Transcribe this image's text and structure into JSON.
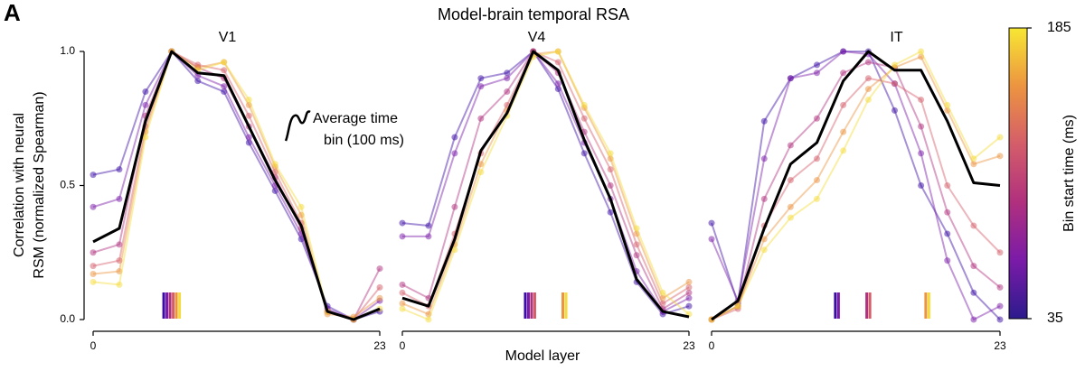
{
  "panel_label": "A",
  "title": "Model-brain temporal RSA",
  "xlabel": "Model layer",
  "ylabel": [
    "Correlation with neural",
    "RSM (normalized Spearman)"
  ],
  "annotation": [
    "Average time",
    "bin (100 ms)"
  ],
  "colorbar": {
    "label": "Bin start time (ms)",
    "lim": [
      35,
      185
    ],
    "ticks": [
      35,
      185
    ],
    "colors": [
      "#2c1b8c",
      "#7a1ba8",
      "#b0307e",
      "#d45d6a",
      "#ec9440",
      "#f7e733"
    ]
  },
  "chart_data": [
    {
      "type": "line",
      "title": "V1",
      "x": [
        0,
        2.1,
        4.2,
        6.3,
        8.4,
        10.5,
        12.5,
        14.6,
        16.7,
        18.8,
        20.9,
        23
      ],
      "xlim": [
        0,
        23
      ],
      "xticks": [
        0,
        23
      ],
      "ylim": [
        0,
        1
      ],
      "yticks": [
        {
          "value": 0,
          "label": "0.0"
        },
        {
          "value": 0.5,
          "label": "0.5"
        },
        {
          "value": 1,
          "label": "1.0"
        }
      ],
      "series": [
        {
          "color": "#3a0ca3",
          "values": [
            0.54,
            0.56,
            0.85,
            1.0,
            0.89,
            0.85,
            0.66,
            0.48,
            0.3,
            0.05,
            0.0,
            0.03
          ]
        },
        {
          "color": "#7a1ba8",
          "values": [
            0.42,
            0.45,
            0.8,
            1.0,
            0.91,
            0.87,
            0.68,
            0.5,
            0.32,
            0.04,
            0.0,
            0.07
          ]
        },
        {
          "color": "#b0307e",
          "values": [
            0.25,
            0.28,
            0.76,
            1.0,
            0.94,
            0.9,
            0.72,
            0.53,
            0.34,
            0.03,
            0.0,
            0.19
          ]
        },
        {
          "color": "#d45d6a",
          "values": [
            0.2,
            0.22,
            0.72,
            1.0,
            0.95,
            0.93,
            0.76,
            0.55,
            0.36,
            0.03,
            0.0,
            0.12
          ]
        },
        {
          "color": "#ec9440",
          "values": [
            0.17,
            0.18,
            0.7,
            1.0,
            0.94,
            0.96,
            0.8,
            0.57,
            0.39,
            0.02,
            0.01,
            0.08
          ]
        },
        {
          "color": "#f5dc3a",
          "values": [
            0.14,
            0.13,
            0.68,
            1.0,
            0.93,
            0.96,
            0.82,
            0.58,
            0.42,
            0.03,
            0.0,
            0.04
          ]
        },
        {
          "color": "#000000",
          "values": [
            0.29,
            0.34,
            0.74,
            1.0,
            0.92,
            0.91,
            0.72,
            0.52,
            0.35,
            0.03,
            0.0,
            0.04
          ]
        }
      ]
    },
    {
      "type": "line",
      "title": "V4",
      "x": [
        0,
        2.1,
        4.2,
        6.3,
        8.4,
        10.5,
        12.5,
        14.6,
        16.7,
        18.8,
        20.9,
        23
      ],
      "xlim": [
        0,
        23
      ],
      "xticks": [
        0,
        23
      ],
      "ylim": [
        0,
        1
      ],
      "series": [
        {
          "color": "#3a0ca3",
          "values": [
            0.36,
            0.35,
            0.68,
            0.9,
            0.92,
            1.0,
            0.86,
            0.62,
            0.4,
            0.14,
            0.02,
            0.05
          ]
        },
        {
          "color": "#7a1ba8",
          "values": [
            0.31,
            0.31,
            0.62,
            0.87,
            0.9,
            1.0,
            0.88,
            0.66,
            0.45,
            0.18,
            0.03,
            0.08
          ]
        },
        {
          "color": "#b0307e",
          "values": [
            0.13,
            0.08,
            0.42,
            0.75,
            0.85,
            1.0,
            0.92,
            0.7,
            0.5,
            0.24,
            0.04,
            0.1
          ]
        },
        {
          "color": "#d45d6a",
          "values": [
            0.1,
            0.05,
            0.32,
            0.62,
            0.8,
            1.0,
            0.96,
            0.75,
            0.56,
            0.28,
            0.06,
            0.12
          ]
        },
        {
          "color": "#ec9440",
          "values": [
            0.06,
            0.02,
            0.28,
            0.58,
            0.78,
            0.99,
            1.0,
            0.79,
            0.6,
            0.32,
            0.08,
            0.14
          ]
        },
        {
          "color": "#f5dc3a",
          "values": [
            0.04,
            0.0,
            0.26,
            0.55,
            0.76,
            0.98,
            1.0,
            0.8,
            0.62,
            0.34,
            0.1,
            0.02
          ]
        },
        {
          "color": "#000000",
          "values": [
            0.08,
            0.05,
            0.3,
            0.63,
            0.77,
            1.0,
            0.93,
            0.67,
            0.45,
            0.15,
            0.03,
            0.01
          ]
        }
      ]
    },
    {
      "type": "line",
      "title": "IT",
      "x": [
        0,
        2.1,
        4.2,
        6.3,
        8.4,
        10.5,
        12.5,
        14.6,
        16.7,
        18.8,
        20.9,
        23
      ],
      "xlim": [
        0,
        23
      ],
      "xticks": [
        0,
        23
      ],
      "ylim": [
        0,
        1
      ],
      "series": [
        {
          "color": "#3a0ca3",
          "values": [
            0.36,
            0.06,
            0.74,
            0.9,
            0.95,
            1.0,
            1.0,
            0.78,
            0.5,
            0.32,
            0.1,
            0.0
          ]
        },
        {
          "color": "#7a1ba8",
          "values": [
            0.3,
            0.07,
            0.6,
            0.9,
            0.92,
            1.0,
            0.99,
            0.88,
            0.62,
            0.22,
            0.0,
            0.05
          ]
        },
        {
          "color": "#b0307e",
          "values": [
            0.0,
            0.05,
            0.45,
            0.65,
            0.75,
            0.92,
            0.96,
            0.94,
            0.72,
            0.4,
            0.2,
            0.12
          ]
        },
        {
          "color": "#d45d6a",
          "values": [
            0.0,
            0.04,
            0.35,
            0.52,
            0.6,
            0.8,
            0.9,
            0.88,
            0.82,
            0.5,
            0.35,
            0.25
          ]
        },
        {
          "color": "#ec9440",
          "values": [
            0.0,
            0.05,
            0.3,
            0.42,
            0.52,
            0.7,
            0.86,
            0.94,
            0.98,
            0.78,
            0.58,
            0.61
          ]
        },
        {
          "color": "#f5dc3a",
          "values": [
            0.0,
            0.05,
            0.26,
            0.38,
            0.45,
            0.63,
            0.82,
            0.95,
            1.0,
            0.8,
            0.6,
            0.68
          ]
        },
        {
          "color": "#000000",
          "values": [
            0.0,
            0.07,
            0.34,
            0.58,
            0.66,
            0.89,
            1.0,
            0.93,
            0.93,
            0.74,
            0.51,
            0.5
          ]
        }
      ]
    }
  ]
}
